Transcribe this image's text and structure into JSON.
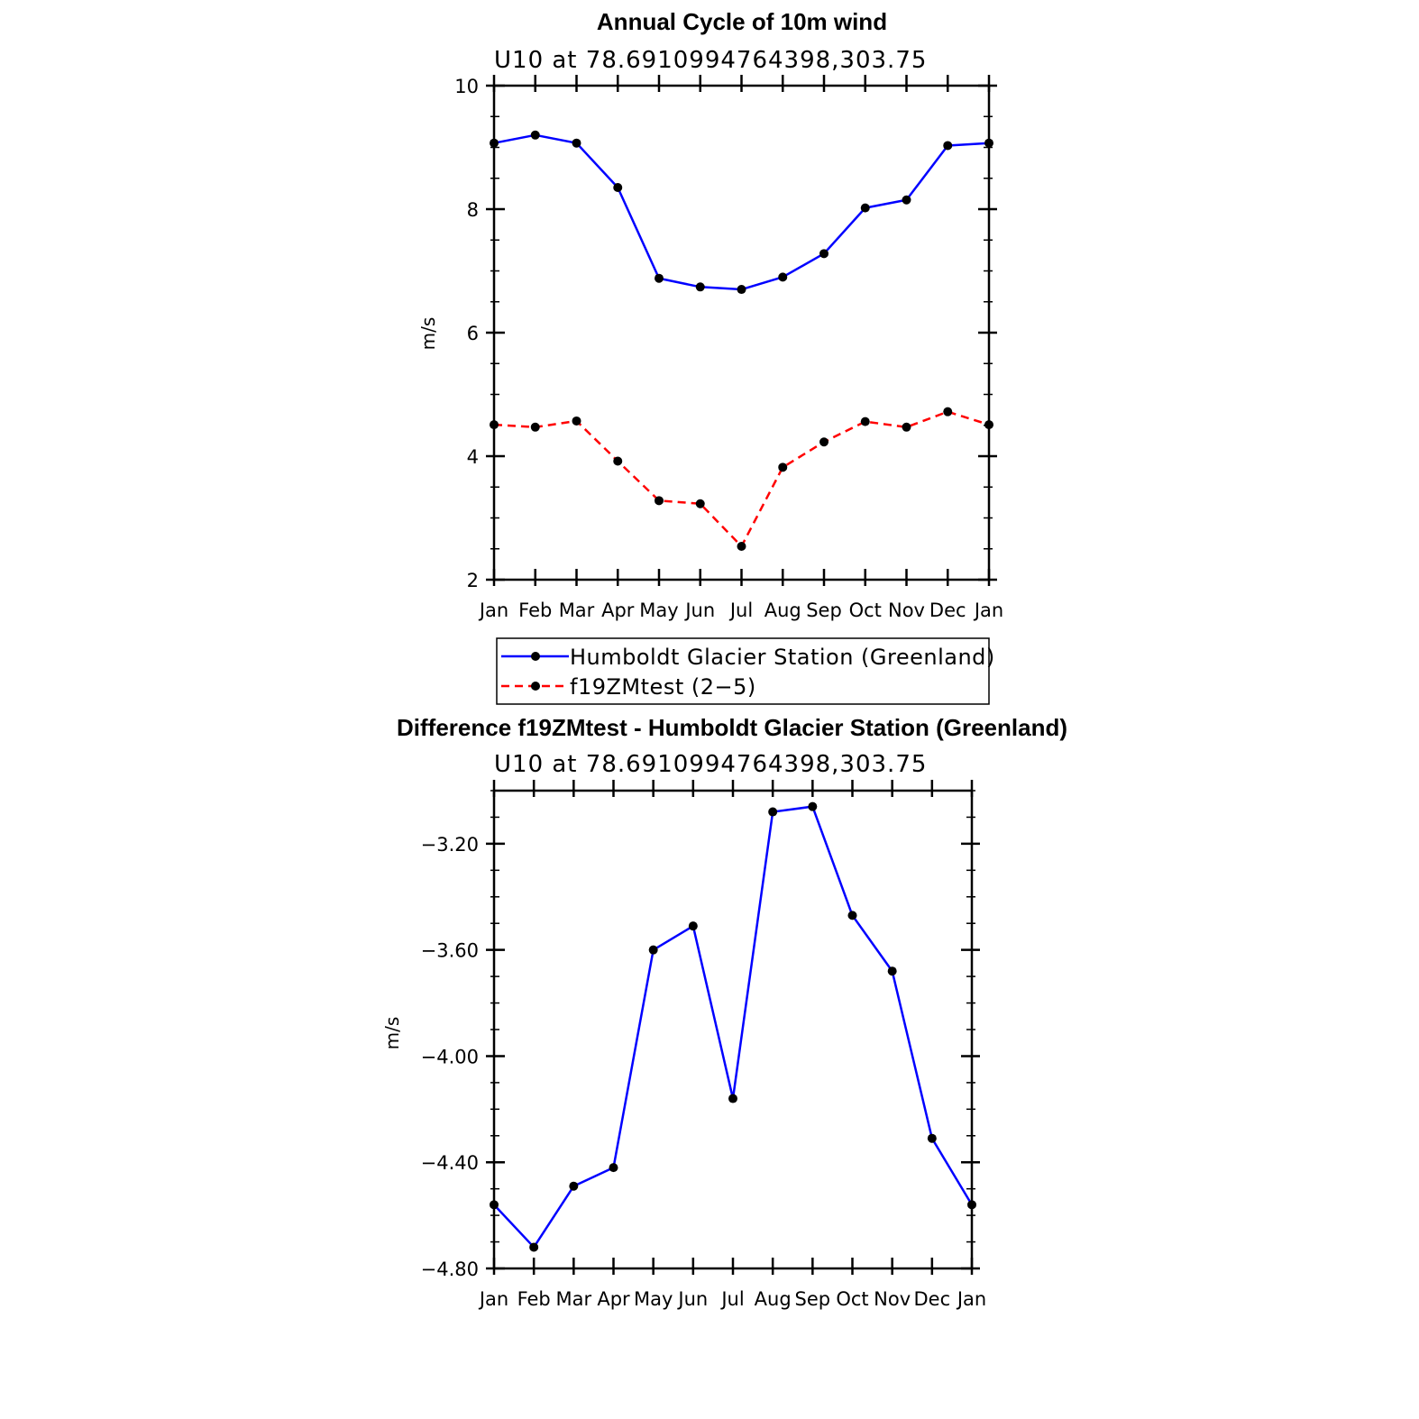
{
  "chart_data": [
    {
      "type": "line",
      "title": "Annual Cycle of 10m wind",
      "subtitle": "U10  at  78.6910994764398,303.75",
      "xlabel": "",
      "ylabel": "m/s",
      "categories": [
        "Jan",
        "Feb",
        "Mar",
        "Apr",
        "May",
        "Jun",
        "Jul",
        "Aug",
        "Sep",
        "Oct",
        "Nov",
        "Dec",
        "Jan"
      ],
      "ylim": [
        2,
        10
      ],
      "yticks": [
        2,
        4,
        6,
        8,
        10
      ],
      "ytick_labels": [
        "2",
        "4",
        "6",
        "8",
        "10"
      ],
      "series": [
        {
          "name": "Humboldt Glacier Station (Greenland)",
          "color": "#0000ff",
          "dashed": false,
          "values": [
            9.07,
            9.2,
            9.07,
            8.35,
            6.88,
            6.74,
            6.7,
            6.9,
            7.28,
            8.02,
            8.15,
            9.03,
            9.07
          ]
        },
        {
          "name": "f19ZMtest (2−5)",
          "color": "#ff0000",
          "dashed": true,
          "values": [
            4.51,
            4.47,
            4.57,
            3.92,
            3.28,
            3.23,
            2.54,
            3.82,
            4.23,
            4.56,
            4.47,
            4.72,
            4.51
          ]
        }
      ],
      "legend_position": "below"
    },
    {
      "type": "line",
      "title": "Difference f19ZMtest - Humboldt Glacier Station (Greenland)",
      "subtitle": "U10  at  78.6910994764398,303.75",
      "xlabel": "",
      "ylabel": "m/s",
      "categories": [
        "Jan",
        "Feb",
        "Mar",
        "Apr",
        "May",
        "Jun",
        "Jul",
        "Aug",
        "Sep",
        "Oct",
        "Nov",
        "Dec",
        "Jan"
      ],
      "ylim": [
        -4.8,
        -3.0
      ],
      "yticks": [
        -4.8,
        -4.4,
        -4.0,
        -3.6,
        -3.2
      ],
      "ytick_labels": [
        "−4.80",
        "−4.40",
        "−4.00",
        "−3.60",
        "−3.20"
      ],
      "series": [
        {
          "name": "Difference",
          "color": "#0000ff",
          "dashed": false,
          "values": [
            -4.56,
            -4.72,
            -4.49,
            -4.42,
            -3.6,
            -3.51,
            -4.16,
            -3.08,
            -3.06,
            -3.47,
            -3.68,
            -4.31,
            -4.56
          ]
        }
      ]
    }
  ]
}
